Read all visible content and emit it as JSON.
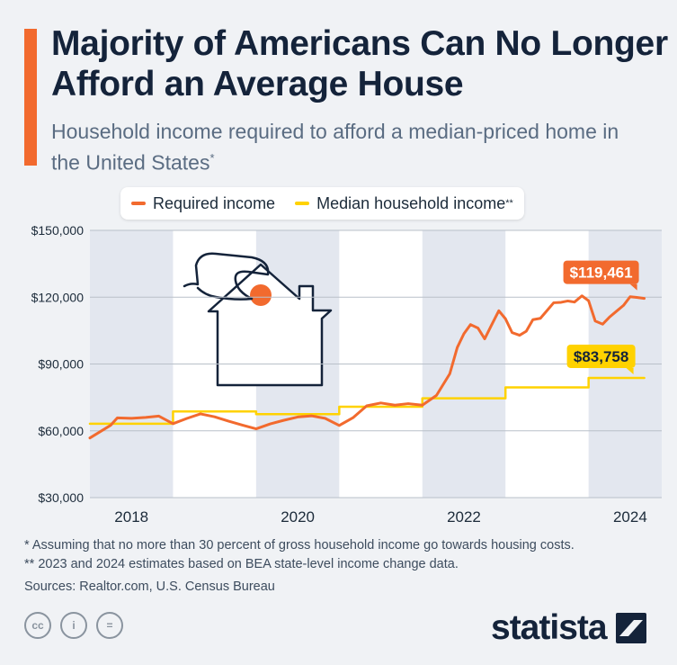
{
  "header": {
    "title": "Majority of Americans Can No Longer Afford an Average House",
    "subtitle": "Household income required to afford a median-priced home in the United States",
    "subtitle_mark": "*"
  },
  "legend": {
    "required_label": "Required income",
    "median_label": "Median household income",
    "median_mark": "**"
  },
  "colors": {
    "required": "#f26a2e",
    "median": "#ffd200",
    "accent": "#f26a2e",
    "band": "#e3e7ef"
  },
  "chart_data": {
    "type": "line",
    "title": "Majority of Americans Can No Longer Afford an Average House",
    "xlabel": "",
    "ylabel": "",
    "xlim": [
      2017.5,
      2024.38
    ],
    "ylim": [
      30000,
      150000
    ],
    "y_ticks": [
      30000,
      60000,
      90000,
      120000,
      150000
    ],
    "y_tick_labels": [
      "$30,000",
      "$60,000",
      "$90,000",
      "$120,000",
      "$150,000"
    ],
    "x_ticks": [
      2018,
      2020,
      2022,
      2024
    ],
    "x_tick_labels": [
      "2018",
      "2020",
      "2022",
      "2024"
    ],
    "series": [
      {
        "name": "Required income",
        "step": false,
        "points": [
          [
            2017.5,
            56800
          ],
          [
            2017.75,
            62500
          ],
          [
            2017.83,
            65800
          ],
          [
            2018.0,
            65600
          ],
          [
            2018.17,
            66000
          ],
          [
            2018.33,
            66600
          ],
          [
            2018.5,
            63200
          ],
          [
            2018.67,
            65600
          ],
          [
            2018.83,
            67600
          ],
          [
            2019.0,
            66300
          ],
          [
            2019.17,
            64300
          ],
          [
            2019.33,
            62600
          ],
          [
            2019.5,
            60900
          ],
          [
            2019.67,
            63100
          ],
          [
            2019.83,
            64700
          ],
          [
            2020.0,
            66200
          ],
          [
            2020.17,
            66700
          ],
          [
            2020.33,
            65600
          ],
          [
            2020.5,
            62400
          ],
          [
            2020.67,
            66000
          ],
          [
            2020.83,
            71200
          ],
          [
            2021.0,
            72500
          ],
          [
            2021.17,
            71500
          ],
          [
            2021.33,
            72200
          ],
          [
            2021.5,
            71500
          ],
          [
            2021.67,
            75900
          ],
          [
            2021.83,
            85600
          ],
          [
            2021.92,
            97400
          ],
          [
            2022.0,
            103600
          ],
          [
            2022.08,
            107700
          ],
          [
            2022.17,
            106100
          ],
          [
            2022.25,
            101300
          ],
          [
            2022.33,
            107300
          ],
          [
            2022.42,
            113900
          ],
          [
            2022.5,
            110300
          ],
          [
            2022.58,
            104100
          ],
          [
            2022.67,
            102900
          ],
          [
            2022.75,
            104700
          ],
          [
            2022.83,
            109900
          ],
          [
            2022.92,
            110500
          ],
          [
            2023.0,
            114000
          ],
          [
            2023.08,
            117500
          ],
          [
            2023.17,
            117700
          ],
          [
            2023.25,
            118300
          ],
          [
            2023.33,
            117800
          ],
          [
            2023.42,
            120600
          ],
          [
            2023.5,
            118400
          ],
          [
            2023.58,
            109300
          ],
          [
            2023.67,
            107900
          ],
          [
            2023.75,
            111000
          ],
          [
            2023.83,
            113500
          ],
          [
            2023.92,
            116300
          ],
          [
            2024.0,
            120200
          ],
          [
            2024.08,
            119900
          ],
          [
            2024.17,
            119461
          ]
        ],
        "end_label": "$119,461"
      },
      {
        "name": "Median household income",
        "step": true,
        "points": [
          [
            2017.5,
            63200
          ],
          [
            2018.5,
            68700
          ],
          [
            2019.5,
            67500
          ],
          [
            2020.5,
            70800
          ],
          [
            2021.5,
            74600
          ],
          [
            2022.5,
            79500
          ],
          [
            2023.5,
            83758
          ],
          [
            2024.17,
            83758
          ]
        ],
        "end_label": "$83,758"
      }
    ]
  },
  "footnotes": {
    "note1": "*    Assuming that no more than 30 percent of gross household income go towards housing costs.",
    "note2": "** 2023 and 2024 estimates based on BEA state-level income change data.",
    "sources": "Sources: Realtor.com, U.S. Census Bureau"
  },
  "license": {
    "cc": "cc",
    "by": "i",
    "nd": "="
  },
  "brand": {
    "logo_text": "statista"
  }
}
